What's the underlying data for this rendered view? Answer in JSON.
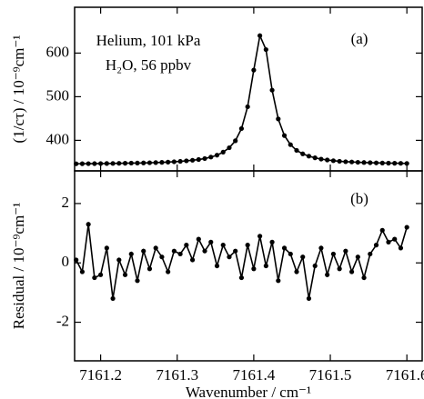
{
  "chart_data": [
    {
      "type": "line",
      "ylabel": "(1/cτ) / 10⁻⁹cm⁻¹",
      "annotations": [
        "Helium, 101 kPa",
        "H₂O, 56 ppbv",
        "(a)"
      ],
      "xlim": [
        7161.166,
        7161.62
      ],
      "xticks": [
        7161.2,
        7161.3,
        7161.4,
        7161.5,
        7161.6
      ],
      "ylim": [
        330,
        705
      ],
      "yticks": [
        400,
        500,
        600
      ],
      "x": [
        7161.168,
        7161.176,
        7161.184,
        7161.192,
        7161.2,
        7161.208,
        7161.216,
        7161.224,
        7161.232,
        7161.24,
        7161.248,
        7161.256,
        7161.264,
        7161.272,
        7161.28,
        7161.288,
        7161.296,
        7161.304,
        7161.312,
        7161.32,
        7161.328,
        7161.336,
        7161.344,
        7161.352,
        7161.36,
        7161.368,
        7161.376,
        7161.384,
        7161.392,
        7161.4,
        7161.408,
        7161.416,
        7161.424,
        7161.432,
        7161.44,
        7161.448,
        7161.456,
        7161.464,
        7161.472,
        7161.48,
        7161.488,
        7161.496,
        7161.504,
        7161.512,
        7161.52,
        7161.528,
        7161.536,
        7161.544,
        7161.552,
        7161.56,
        7161.568,
        7161.576,
        7161.584,
        7161.592,
        7161.6
      ],
      "series": [
        {
          "color": "#000000",
          "values": [
            346.3,
            346.4,
            346.5,
            346.6,
            346.8,
            346.9,
            347.1,
            347.3,
            347.5,
            347.8,
            347.9,
            348.2,
            348.6,
            349.0,
            349.5,
            350.1,
            350.9,
            351.8,
            353.0,
            354.4,
            356,
            358.3,
            361.6,
            366,
            372.9,
            383,
            399,
            427,
            477,
            561,
            640,
            608,
            515,
            449,
            411,
            390,
            377,
            369,
            363.7,
            360,
            357,
            355,
            353.3,
            352,
            351,
            350.4,
            349.7,
            349.2,
            348.7,
            348.3,
            348,
            347.7,
            347.5,
            347.3,
            347.1
          ]
        }
      ]
    },
    {
      "type": "line",
      "ylabel": "Residual / 10⁻⁹cm⁻¹",
      "xlabel": "Wavenumber / cm⁻¹",
      "annotations": [
        "(b)"
      ],
      "xlim": [
        7161.166,
        7161.62
      ],
      "xticks": [
        7161.2,
        7161.3,
        7161.4,
        7161.5,
        7161.6
      ],
      "ylim": [
        -3.3,
        3.1
      ],
      "yticks": [
        -2,
        0,
        2
      ],
      "x": [
        7161.168,
        7161.176,
        7161.184,
        7161.192,
        7161.2,
        7161.208,
        7161.216,
        7161.224,
        7161.232,
        7161.24,
        7161.248,
        7161.256,
        7161.264,
        7161.272,
        7161.28,
        7161.288,
        7161.296,
        7161.304,
        7161.312,
        7161.32,
        7161.328,
        7161.336,
        7161.344,
        7161.352,
        7161.36,
        7161.368,
        7161.376,
        7161.384,
        7161.392,
        7161.4,
        7161.408,
        7161.416,
        7161.424,
        7161.432,
        7161.44,
        7161.448,
        7161.456,
        7161.464,
        7161.472,
        7161.48,
        7161.488,
        7161.496,
        7161.504,
        7161.512,
        7161.52,
        7161.528,
        7161.536,
        7161.544,
        7161.552,
        7161.56,
        7161.568,
        7161.576,
        7161.584,
        7161.592,
        7161.6
      ],
      "series": [
        {
          "color": "#000000",
          "values": [
            0.1,
            -0.3,
            1.3,
            -0.5,
            -0.4,
            0.5,
            -1.2,
            0.1,
            -0.4,
            0.3,
            -0.6,
            0.4,
            -0.2,
            0.5,
            0.2,
            -0.3,
            0.4,
            0.3,
            0.6,
            0.1,
            0.8,
            0.4,
            0.7,
            -0.1,
            0.6,
            0.2,
            0.4,
            -0.5,
            0.6,
            -0.2,
            0.9,
            -0.1,
            0.7,
            -0.6,
            0.5,
            0.3,
            -0.3,
            0.2,
            -1.2,
            -0.1,
            0.5,
            -0.4,
            0.3,
            -0.2,
            0.4,
            -0.3,
            0.2,
            -0.5,
            0.3,
            0.6,
            1.1,
            0.7,
            0.8,
            0.5,
            1.2
          ]
        }
      ]
    }
  ]
}
